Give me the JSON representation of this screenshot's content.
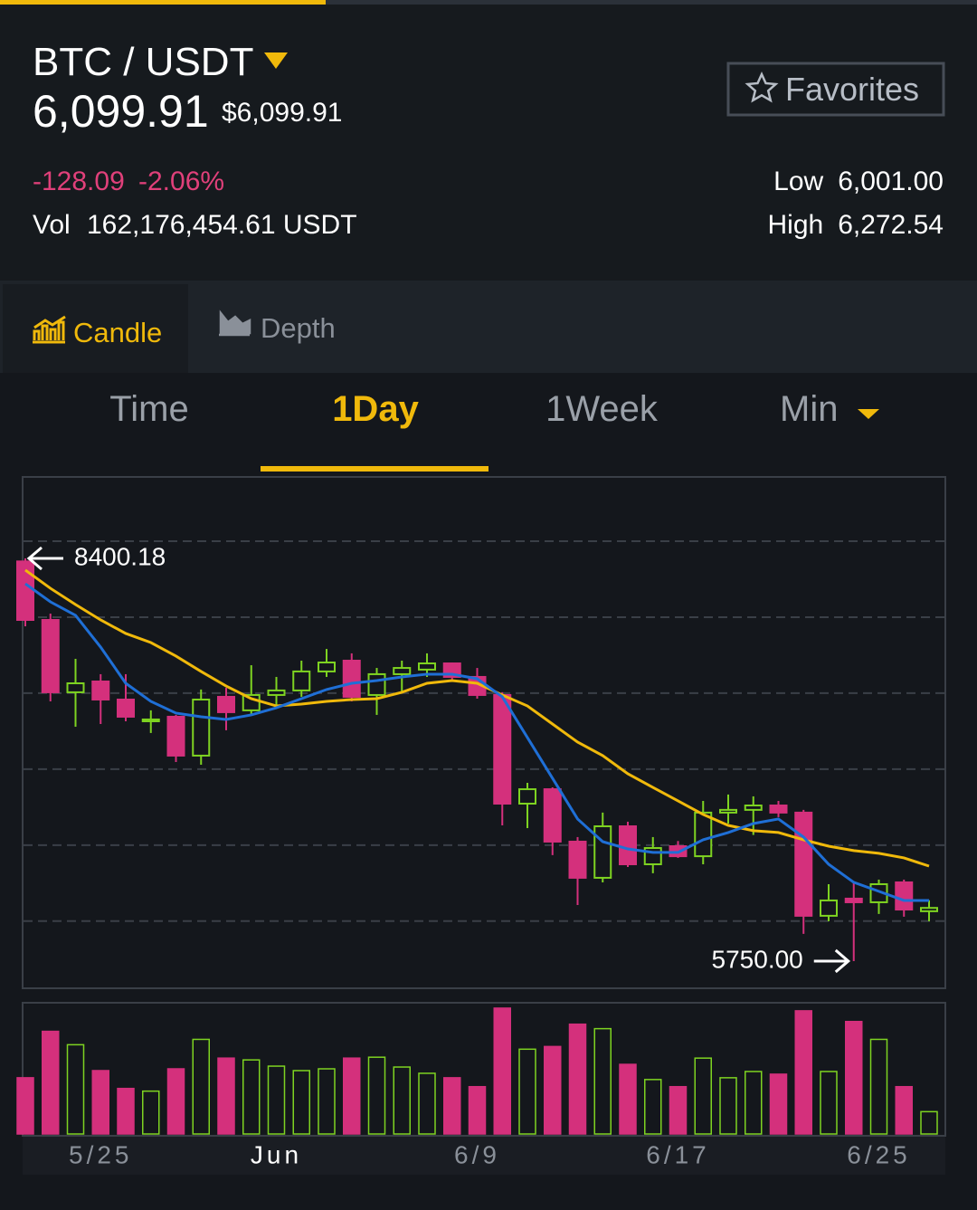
{
  "header": {
    "pair": "BTC / USDT",
    "price": "6,099.91",
    "price_usd": "$6,099.91",
    "favorites": "Favorites",
    "change": "-128.09",
    "change_pct": "-2.06%",
    "vol_label": "Vol",
    "vol": "162,176,454.61 USDT",
    "low_label": "Low",
    "low": "6,001.00",
    "high_label": "High",
    "high": "6,272.54"
  },
  "tabs": [
    "Candle",
    "Depth"
  ],
  "intervals": [
    "Time",
    "1Day",
    "1Week",
    "Min"
  ],
  "chart_data": {
    "type": "candlestick",
    "categories": [
      null,
      null,
      null,
      "5/25",
      null,
      null,
      null,
      null,
      null,
      null,
      "Jun",
      null,
      null,
      null,
      null,
      null,
      null,
      null,
      "6/9",
      null,
      null,
      null,
      null,
      null,
      null,
      null,
      "6/17",
      null,
      null,
      null,
      null,
      null,
      null,
      null,
      "6/25",
      null,
      null
    ],
    "candles": {
      "open": [
        8380,
        7995,
        7519,
        7590,
        7471,
        7328,
        7358,
        7102,
        7489,
        7400,
        7501,
        7531,
        7656,
        7727,
        7501,
        7638,
        7668,
        7709,
        7620,
        7501,
        6786,
        6881,
        6536,
        6298,
        6637,
        6387,
        6506,
        6440,
        6727,
        6745,
        6774,
        6727,
        6048,
        6161,
        6137,
        6268,
        6078
      ],
      "high": [
        8400.18,
        8037,
        7739,
        7638,
        7638,
        7400,
        7370,
        7537,
        7548,
        7697,
        7620,
        7727,
        7804,
        7775,
        7679,
        7727,
        7775,
        7715,
        7679,
        7519,
        6923,
        6893,
        6566,
        6727,
        6667,
        6566,
        6540,
        6804,
        6846,
        6834,
        6804,
        6745,
        6256,
        6268,
        6286,
        6286,
        6150
      ],
      "low": [
        7953,
        7459,
        7292,
        7310,
        7328,
        7251,
        7060,
        7042,
        7269,
        7370,
        7429,
        7489,
        7620,
        7459,
        7370,
        7519,
        7620,
        7596,
        7477,
        6643,
        6625,
        6447,
        6119,
        6268,
        6369,
        6328,
        6429,
        6387,
        6655,
        6580,
        6697,
        5929,
        6012,
        5750,
        6060,
        6042,
        6012
      ],
      "close": [
        7995,
        7519,
        7578,
        7471,
        7358,
        7340,
        7102,
        7471,
        7388,
        7501,
        7531,
        7656,
        7715,
        7489,
        7638,
        7679,
        7709,
        7620,
        7501,
        6786,
        6881,
        6536,
        6298,
        6637,
        6387,
        6494,
        6440,
        6727,
        6745,
        6774,
        6727,
        6048,
        6149,
        6137,
        6256,
        6089,
        6099.91
      ]
    },
    "moving_averages": [
      {
        "color": "#f0b90b",
        "values": [
          8323,
          8203,
          8096,
          7995,
          7906,
          7846,
          7757,
          7656,
          7560,
          7477,
          7429,
          7441,
          7459,
          7471,
          7477,
          7519,
          7578,
          7596,
          7578,
          7501,
          7429,
          7310,
          7191,
          7102,
          6983,
          6893,
          6804,
          6715,
          6643,
          6608,
          6596,
          6548,
          6506,
          6477,
          6459,
          6429,
          6375
        ]
      },
      {
        "color": "#1f6fd6",
        "values": [
          8233,
          8114,
          8025,
          7816,
          7578,
          7459,
          7382,
          7358,
          7340,
          7370,
          7417,
          7477,
          7537,
          7578,
          7596,
          7620,
          7638,
          7638,
          7608,
          7489,
          7221,
          6953,
          6685,
          6536,
          6488,
          6465,
          6465,
          6548,
          6596,
          6655,
          6685,
          6566,
          6387,
          6268,
          6209,
          6149,
          6149
        ]
      }
    ],
    "volume": [
      63,
      115,
      100,
      71,
      51,
      48,
      73,
      106,
      85,
      83,
      76,
      71,
      73,
      85,
      86,
      75,
      68,
      63,
      53,
      141,
      95,
      98,
      123,
      118,
      78,
      61,
      53,
      85,
      63,
      70,
      67,
      138,
      70,
      126,
      106,
      53,
      25
    ],
    "ylim": [
      5571,
      8936
    ],
    "yticks": [
      6013,
      6513,
      7013,
      7513,
      8013,
      8513
    ],
    "grid": true,
    "volume_ylim": [
      0,
      145
    ],
    "colors": {
      "up": "#7ed321",
      "down": "#d4307c"
    },
    "annotations": [
      {
        "value": 8400.18,
        "label": "8400.18"
      },
      {
        "value": 5750,
        "label": "5750.00"
      }
    ]
  }
}
